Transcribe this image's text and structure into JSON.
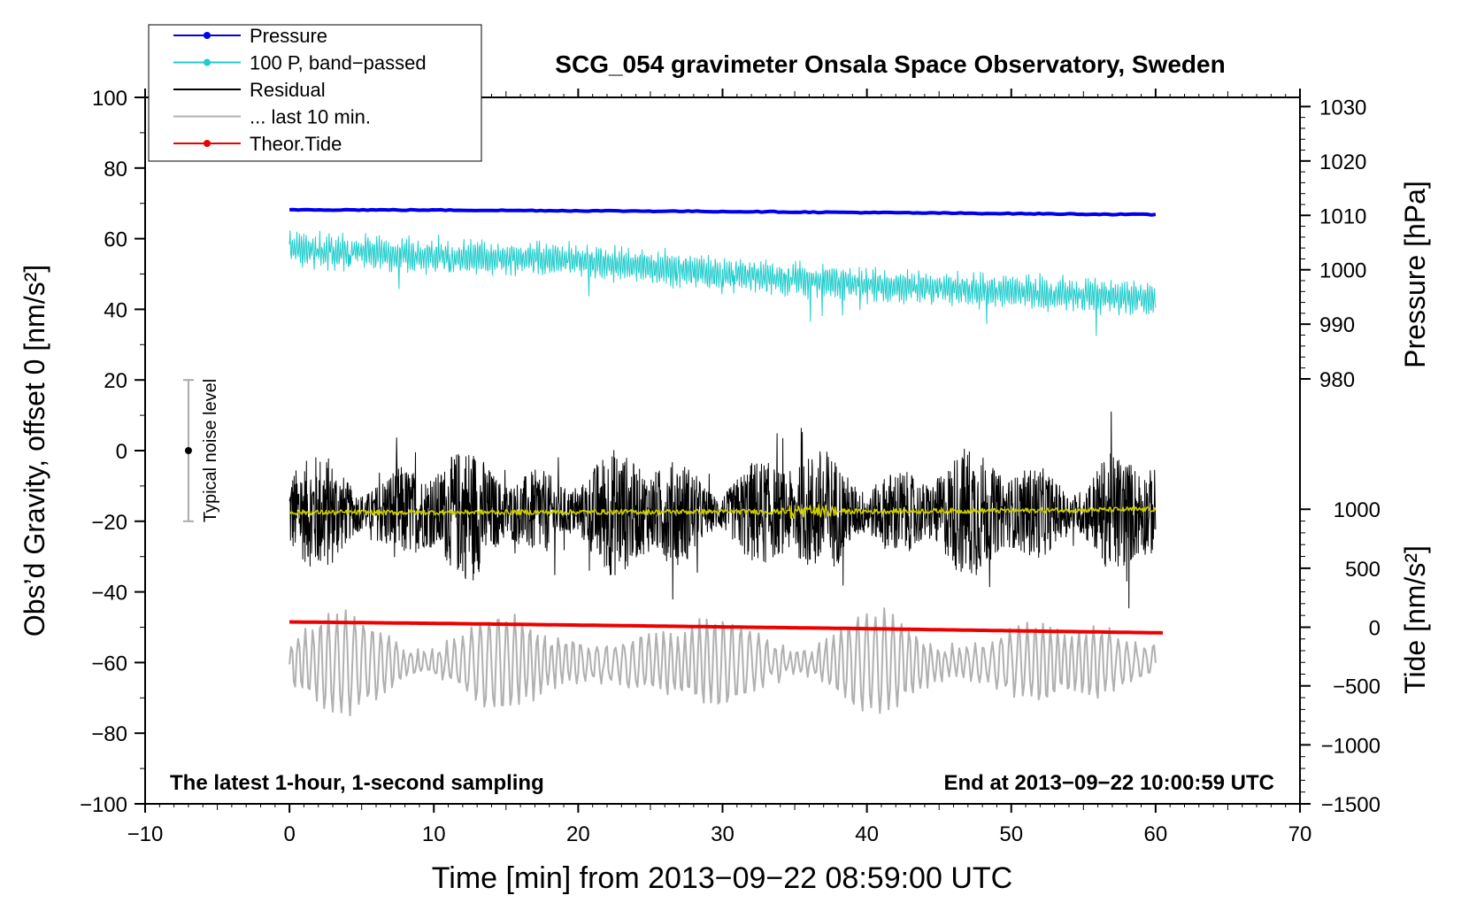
{
  "chart_data": {
    "type": "line",
    "title": "SCG_054 gravimeter Onsala Space Observatory, Sweden",
    "xlabel": "Time [min] from 2013−09−22 08:59:00 UTC",
    "ylabel_left": "Obs’d Gravity, offset 0 [nm/s²]",
    "ylabel_right_top": "Pressure [hPa]",
    "ylabel_right_bottom": "Tide [nm/s²]",
    "xlim": [
      -10,
      70
    ],
    "ylim": [
      -100,
      100
    ],
    "x_ticks": [
      -10,
      0,
      10,
      20,
      30,
      40,
      50,
      60,
      70
    ],
    "x_tick_labels": [
      "−10",
      "0",
      "10",
      "20",
      "30",
      "40",
      "50",
      "60",
      "70"
    ],
    "y_ticks": [
      -100,
      -80,
      -60,
      -40,
      -20,
      0,
      20,
      40,
      60,
      80,
      100
    ],
    "y_tick_labels": [
      "−100",
      "−80",
      "−60",
      "−40",
      "−20",
      "0",
      "20",
      "40",
      "60",
      "80",
      "100"
    ],
    "pressure_axis": {
      "ticks": [
        980,
        990,
        1000,
        1010,
        1020,
        1030
      ],
      "labels": [
        "980",
        "990",
        "1000",
        "1010",
        "1020",
        "1030"
      ],
      "gravity_equiv": [
        20.3,
        35.8,
        51.2,
        66.6,
        82.0,
        97.4
      ]
    },
    "tide_axis": {
      "ticks": [
        -1500,
        -1000,
        -500,
        0,
        500,
        1000
      ],
      "labels": [
        "−1500",
        "−1000",
        "−500",
        "0",
        "500",
        "1000"
      ],
      "gravity_equiv": [
        -100,
        -83.3,
        -66.6,
        -50,
        -33.3,
        -16.6
      ]
    },
    "left_note": "The latest 1-hour, 1-second sampling",
    "right_note": "End at 2013−09−22 10:00:59 UTC",
    "noise_bar": {
      "label": "Typical noise level",
      "x": -7,
      "center": 0,
      "low": -20,
      "high": 20
    },
    "legend": [
      {
        "label": "Pressure",
        "color": "#0000ee",
        "marker": true
      },
      {
        "label": "100 P, band−passed",
        "color": "#22cccc",
        "marker": true
      },
      {
        "label": "Residual",
        "color": "#000000",
        "marker": false
      },
      {
        "label": "... last 10 min.",
        "color": "#b0b0b0",
        "marker": false
      },
      {
        "label": "Theor.Tide",
        "color": "#ee0000",
        "marker": true
      }
    ],
    "series": [
      {
        "name": "Pressure",
        "color": "#0000ee",
        "x": [
          0,
          10,
          20,
          30,
          40,
          50,
          60
        ],
        "y": [
          68.2,
          68.1,
          67.9,
          67.7,
          67.4,
          67.1,
          66.8
        ]
      },
      {
        "name": "100 P, band-passed",
        "color": "#22cccc",
        "x": [
          0,
          10,
          20,
          30,
          40,
          50,
          60
        ],
        "y": [
          57,
          55,
          54,
          50,
          47,
          45,
          43
        ],
        "amplitude": 4
      },
      {
        "name": "Residual",
        "color": "#000000",
        "x": [
          0,
          10,
          20,
          30,
          40,
          50,
          60
        ],
        "y": [
          -17.5,
          -17.5,
          -17.5,
          -17.5,
          -17.5,
          -17.5,
          -17.5
        ],
        "amplitude": 12
      },
      {
        "name": "Residual smoothed",
        "color": "#cccc00",
        "x": [
          0,
          10,
          20,
          30,
          40,
          50,
          60
        ],
        "y": [
          -17.5,
          -17.5,
          -17.4,
          -17.3,
          -17.2,
          -17.0,
          -16.6
        ]
      },
      {
        "name": "... last 10 min.",
        "color": "#b0b0b0",
        "x": [
          0,
          10,
          20,
          30,
          40,
          50,
          60
        ],
        "y": [
          -60,
          -60,
          -60,
          -60,
          -60,
          -60,
          -60
        ],
        "amplitude": 12
      },
      {
        "name": "Theor.Tide",
        "color": "#ee0000",
        "x": [
          0,
          10,
          20,
          30,
          40,
          50,
          60.5
        ],
        "y": [
          -48.5,
          -48.9,
          -49.4,
          -49.9,
          -50.4,
          -51.0,
          -51.6
        ]
      }
    ]
  }
}
